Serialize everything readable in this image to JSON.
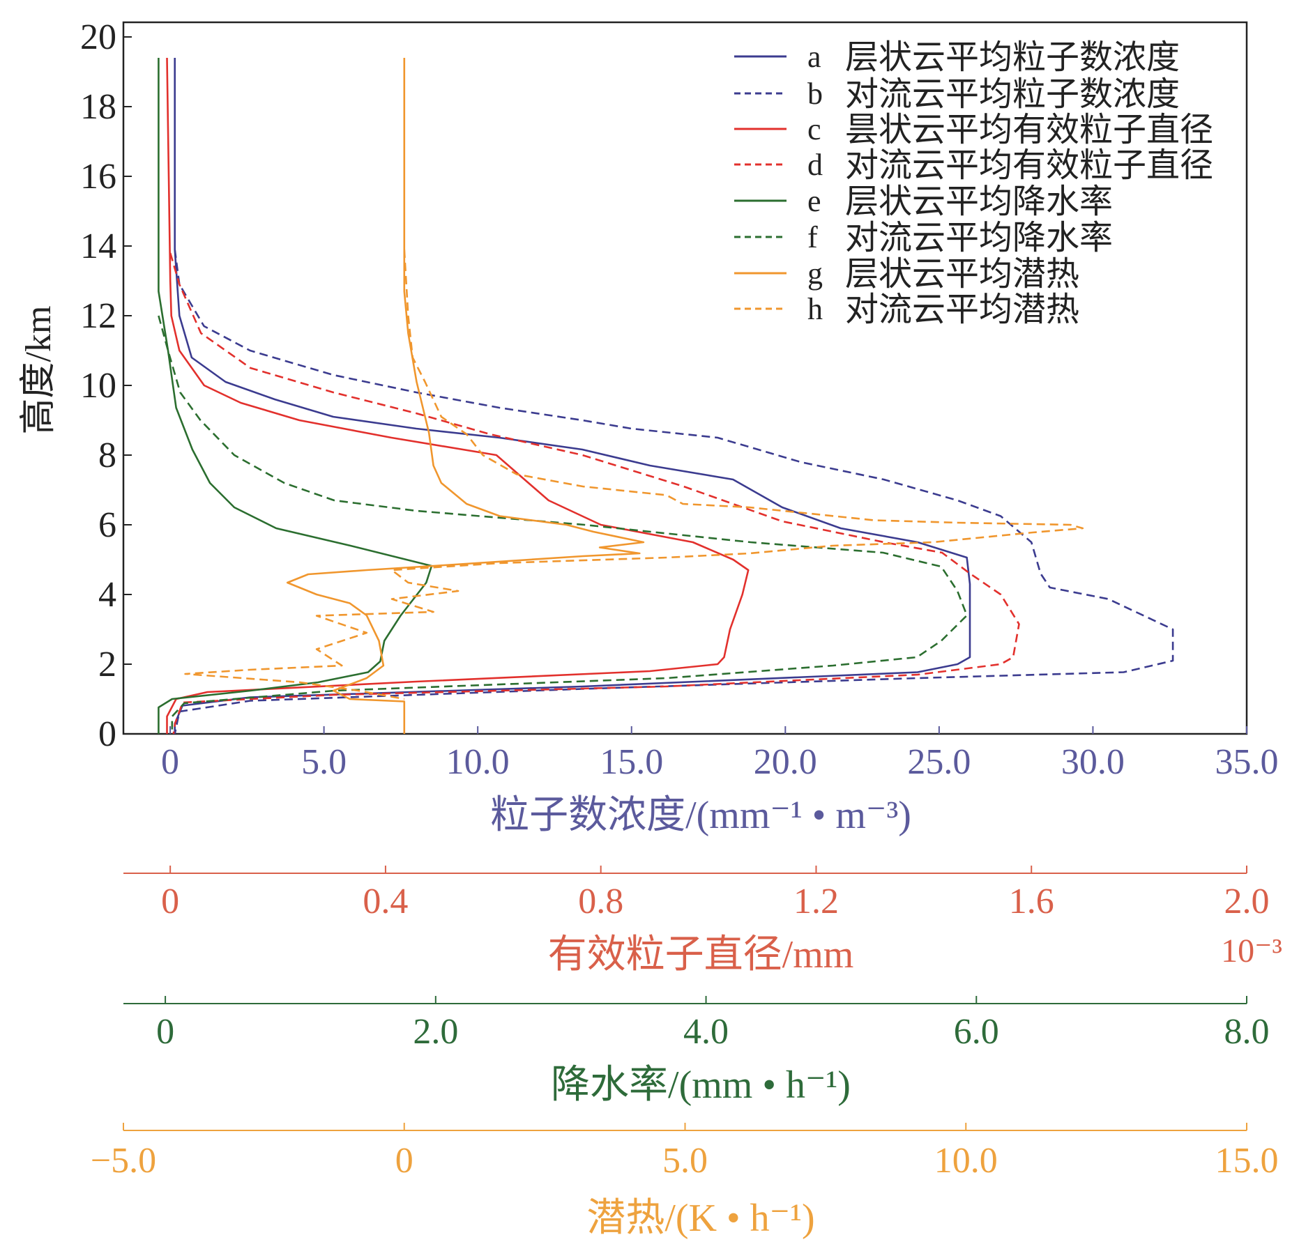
{
  "chart_data": {
    "type": "line",
    "ylabel": "高度/km",
    "ylim": [
      0,
      20
    ],
    "yticks": [
      "0",
      "2",
      "4",
      "6",
      "8",
      "10",
      "12",
      "14",
      "16",
      "18",
      "20"
    ],
    "grid": false,
    "legend_position": "top-right",
    "axes": {
      "conc": {
        "label": "粒子数浓度/(mm⁻¹ • m⁻³)",
        "range": [
          -1.52,
          35
        ],
        "ticks": [
          0,
          5,
          10,
          15,
          20,
          25,
          30,
          35
        ],
        "tick_labels": [
          "0",
          "5.0",
          "10.0",
          "15.0",
          "20.0",
          "25.0",
          "30.0",
          "35.0"
        ],
        "color": "#5b5a9c"
      },
      "diam": {
        "label": "有效粒子直径/mm",
        "multiplier": "10⁻³",
        "range": [
          -0.087,
          2.0
        ],
        "ticks": [
          0,
          0.4,
          0.8,
          1.2,
          1.6,
          2.0
        ],
        "tick_labels": [
          "0",
          "0.4",
          "0.8",
          "1.2",
          "1.6",
          "2.0"
        ],
        "color": "#d9604a"
      },
      "rate": {
        "label": "降水率/(mm • h⁻¹)",
        "range": [
          -0.31,
          8.0
        ],
        "ticks": [
          0,
          2,
          4,
          6,
          8
        ],
        "tick_labels": [
          "0",
          "2.0",
          "4.0",
          "6.0",
          "8.0"
        ],
        "color": "#2e6b3a"
      },
      "lh": {
        "label": "潜热/(K • h⁻¹)",
        "range": [
          -5,
          15
        ],
        "ticks": [
          -5,
          0,
          5,
          10,
          15
        ],
        "tick_labels": [
          "−5.0",
          "0",
          "5.0",
          "10.0",
          "15.0"
        ],
        "color": "#eea23e"
      }
    },
    "series": [
      {
        "key": "a",
        "name": "层状云平均粒子数浓度",
        "axis": "conc",
        "color": "#3b3b8f",
        "dashed": false,
        "points": [
          [
            0.15,
            19.4
          ],
          [
            0.15,
            13.9
          ],
          [
            0.3,
            12
          ],
          [
            0.7,
            10.8
          ],
          [
            1.8,
            10.1
          ],
          [
            3.4,
            9.6
          ],
          [
            5.3,
            9.1
          ],
          [
            8,
            8.76
          ],
          [
            10.7,
            8.5
          ],
          [
            13.4,
            8.16
          ],
          [
            15.6,
            7.7
          ],
          [
            18.3,
            7.3
          ],
          [
            19.9,
            6.5
          ],
          [
            21.8,
            5.9
          ],
          [
            24.3,
            5.5
          ],
          [
            25.9,
            5.06
          ],
          [
            26,
            4.3
          ],
          [
            26,
            2.2
          ],
          [
            25.6,
            2
          ],
          [
            24.3,
            1.77
          ],
          [
            13.4,
            1.36
          ],
          [
            2.6,
            1.05
          ],
          [
            0.4,
            0.81
          ],
          [
            0.15,
            0.29
          ],
          [
            0.15,
            0
          ]
        ]
      },
      {
        "key": "b",
        "name": "对流云平均粒子数浓度",
        "axis": "conc",
        "color": "#3b3b8f",
        "dashed": true,
        "points": [
          [
            0.15,
            13.9
          ],
          [
            0.3,
            12.9
          ],
          [
            1.1,
            11.7
          ],
          [
            2.6,
            11
          ],
          [
            5.3,
            10.3
          ],
          [
            8,
            9.8
          ],
          [
            10.7,
            9.36
          ],
          [
            13.4,
            9
          ],
          [
            15,
            8.76
          ],
          [
            17.8,
            8.5
          ],
          [
            20.5,
            7.8
          ],
          [
            23.2,
            7.3
          ],
          [
            25.6,
            6.7
          ],
          [
            27,
            6.25
          ],
          [
            28,
            5.5
          ],
          [
            28.3,
            4.6
          ],
          [
            28.6,
            4.2
          ],
          [
            30.5,
            3.87
          ],
          [
            32.6,
            3.0
          ],
          [
            32.6,
            2.1
          ],
          [
            31,
            1.77
          ],
          [
            24.3,
            1.6
          ],
          [
            13.4,
            1.29
          ],
          [
            2.6,
            0.95
          ],
          [
            0.3,
            0.64
          ],
          [
            0.15,
            0
          ]
        ]
      },
      {
        "key": "c",
        "name": "昙状云平均有效粒子直径",
        "axis": "diam",
        "color": "#e2302c",
        "dashed": false,
        "points": [
          [
            -0.006,
            19.4
          ],
          [
            0.0,
            13
          ],
          [
            0.002,
            12
          ],
          [
            0.017,
            11
          ],
          [
            0.063,
            10
          ],
          [
            0.131,
            9.5
          ],
          [
            0.24,
            9
          ],
          [
            0.411,
            8.5
          ],
          [
            0.606,
            8
          ],
          [
            0.703,
            6.7
          ],
          [
            0.8,
            6
          ],
          [
            0.971,
            5.5
          ],
          [
            1.046,
            5
          ],
          [
            1.074,
            4.7
          ],
          [
            1.063,
            4
          ],
          [
            1.04,
            3
          ],
          [
            1.029,
            2.2
          ],
          [
            1.017,
            2
          ],
          [
            0.891,
            1.8
          ],
          [
            0.457,
            1.5
          ],
          [
            0.069,
            1.2
          ],
          [
            0.011,
            1
          ],
          [
            -0.006,
            0.5
          ],
          [
            -0.006,
            0
          ]
        ]
      },
      {
        "key": "d",
        "name": "对流云平均有效粒子直径",
        "axis": "diam",
        "color": "#e2302c",
        "dashed": true,
        "points": [
          [
            0.0,
            13.8
          ],
          [
            0.017,
            12.9
          ],
          [
            0.057,
            11.5
          ],
          [
            0.149,
            10.5
          ],
          [
            0.303,
            9.8
          ],
          [
            0.457,
            9.2
          ],
          [
            0.594,
            8.6
          ],
          [
            0.766,
            8.0
          ],
          [
            0.954,
            7.1
          ],
          [
            1.137,
            6.1
          ],
          [
            1.326,
            5.5
          ],
          [
            1.434,
            5.2
          ],
          [
            1.486,
            4.6
          ],
          [
            1.543,
            4.0
          ],
          [
            1.577,
            3.15
          ],
          [
            1.566,
            2.2
          ],
          [
            1.543,
            2.0
          ],
          [
            1.389,
            1.7
          ],
          [
            0.92,
            1.36
          ],
          [
            0.303,
            1.12
          ],
          [
            0.023,
            0.9
          ],
          [
            0.009,
            0.3
          ],
          [
            0.006,
            0
          ]
        ]
      },
      {
        "key": "e",
        "name": "层状云平均降水率",
        "axis": "rate",
        "color": "#2b6e2f",
        "dashed": false,
        "points": [
          [
            -0.05,
            19.4
          ],
          [
            -0.05,
            12.7
          ],
          [
            0.02,
            11
          ],
          [
            0.08,
            9.36
          ],
          [
            0.2,
            8.16
          ],
          [
            0.33,
            7.2
          ],
          [
            0.51,
            6.5
          ],
          [
            0.82,
            5.9
          ],
          [
            1.37,
            5.4
          ],
          [
            1.97,
            4.82
          ],
          [
            1.93,
            4.34
          ],
          [
            1.74,
            3.39
          ],
          [
            1.62,
            2.67
          ],
          [
            1.59,
            2.08
          ],
          [
            1.5,
            1.77
          ],
          [
            1.13,
            1.48
          ],
          [
            0.63,
            1.24
          ],
          [
            0.05,
            1.0
          ],
          [
            -0.05,
            0.76
          ],
          [
            -0.05,
            0
          ]
        ]
      },
      {
        "key": "f",
        "name": "对流云平均降水率",
        "axis": "rate",
        "color": "#2b6e2f",
        "dashed": true,
        "points": [
          [
            -0.05,
            12
          ],
          [
            0.02,
            11
          ],
          [
            0.11,
            9.8
          ],
          [
            0.26,
            9
          ],
          [
            0.51,
            8
          ],
          [
            0.88,
            7.2
          ],
          [
            1.25,
            6.7
          ],
          [
            1.86,
            6.4
          ],
          [
            3.1,
            6.0
          ],
          [
            3.59,
            5.8
          ],
          [
            4.33,
            5.5
          ],
          [
            5.31,
            5.2
          ],
          [
            5.74,
            4.8
          ],
          [
            5.86,
            4.1
          ],
          [
            5.93,
            3.4
          ],
          [
            5.74,
            2.67
          ],
          [
            5.56,
            2.2
          ],
          [
            4.94,
            1.96
          ],
          [
            3.71,
            1.6
          ],
          [
            1.25,
            1.24
          ],
          [
            0.14,
            0.88
          ],
          [
            0.05,
            0.5
          ],
          [
            0.05,
            0
          ]
        ]
      },
      {
        "key": "g",
        "name": "层状云平均潜热",
        "axis": "lh",
        "color": "#f0962d",
        "dashed": false,
        "points": [
          [
            0,
            19.4
          ],
          [
            0,
            12.7
          ],
          [
            0.07,
            11.5
          ],
          [
            0.22,
            10.1
          ],
          [
            0.44,
            8.64
          ],
          [
            0.52,
            7.7
          ],
          [
            0.66,
            7.2
          ],
          [
            1.11,
            6.6
          ],
          [
            1.7,
            6.25
          ],
          [
            2.89,
            6.0
          ],
          [
            3.37,
            5.8
          ],
          [
            4.26,
            5.5
          ],
          [
            3.48,
            5.35
          ],
          [
            4.19,
            5.18
          ],
          [
            3.18,
            5.1
          ],
          [
            0.52,
            4.82
          ],
          [
            -0.67,
            4.7
          ],
          [
            -1.71,
            4.58
          ],
          [
            -2.08,
            4.34
          ],
          [
            -1.56,
            4.0
          ],
          [
            -0.97,
            3.75
          ],
          [
            -0.67,
            3.4
          ],
          [
            -0.45,
            2.67
          ],
          [
            -0.37,
            1.96
          ],
          [
            -0.67,
            1.6
          ],
          [
            -1.26,
            1.24
          ],
          [
            -0.97,
            1.0
          ],
          [
            0,
            0.93
          ],
          [
            0,
            0
          ]
        ]
      },
      {
        "key": "h",
        "name": "对流云平均潜热",
        "axis": "lh",
        "color": "#f0962d",
        "dashed": true,
        "points": [
          [
            0,
            13.9
          ],
          [
            0.07,
            12
          ],
          [
            0.15,
            10.8
          ],
          [
            0.37,
            10.1
          ],
          [
            0.66,
            9.1
          ],
          [
            1.11,
            8.6
          ],
          [
            1.4,
            8.0
          ],
          [
            2.0,
            7.45
          ],
          [
            3.18,
            7.1
          ],
          [
            4.67,
            6.85
          ],
          [
            4.96,
            6.6
          ],
          [
            6.15,
            6.5
          ],
          [
            8.37,
            6.13
          ],
          [
            9.86,
            6.06
          ],
          [
            11.86,
            6.0
          ],
          [
            12.08,
            5.9
          ],
          [
            11.19,
            5.78
          ],
          [
            9.41,
            5.5
          ],
          [
            7.63,
            5.4
          ],
          [
            6.15,
            5.18
          ],
          [
            4.67,
            5.06
          ],
          [
            1.7,
            4.9
          ],
          [
            -0.22,
            4.7
          ],
          [
            0.07,
            4.34
          ],
          [
            0.96,
            4.1
          ],
          [
            -0.22,
            3.87
          ],
          [
            0.52,
            3.5
          ],
          [
            -1.56,
            3.39
          ],
          [
            -0.67,
            2.9
          ],
          [
            -1.56,
            2.43
          ],
          [
            -1.11,
            1.96
          ],
          [
            -2.75,
            1.84
          ],
          [
            -3.9,
            1.72
          ],
          [
            -1.86,
            1.48
          ],
          [
            -0.82,
            1.24
          ],
          [
            0,
            1.0
          ]
        ]
      }
    ]
  }
}
